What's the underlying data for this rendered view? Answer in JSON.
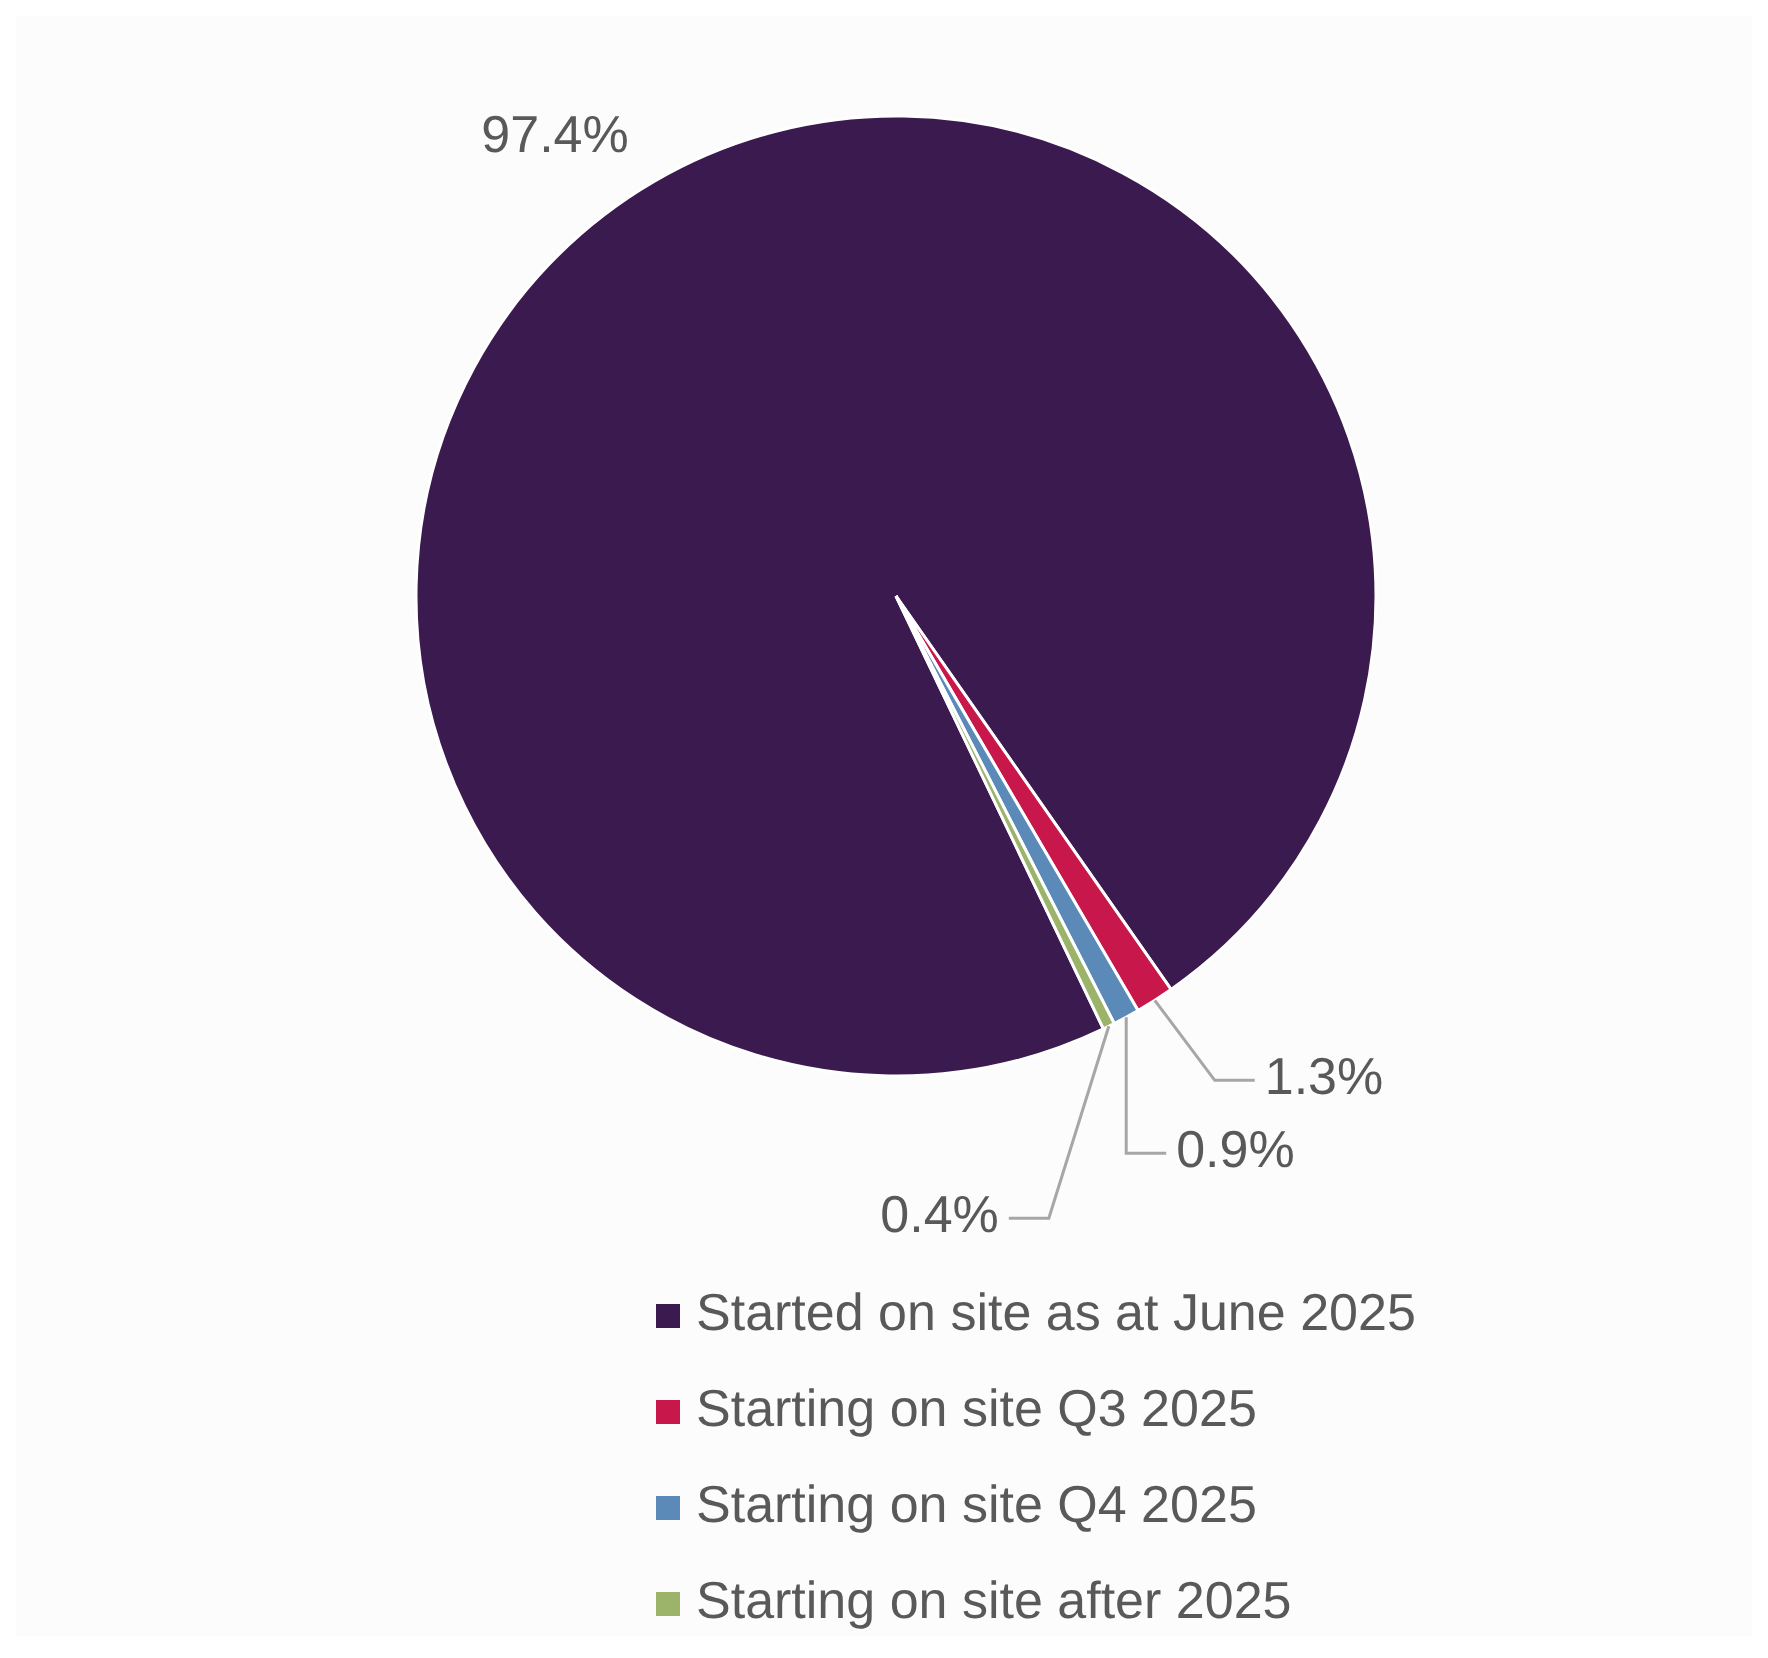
{
  "chart_data": {
    "type": "pie",
    "categories": [
      "Started on site as at June 2025",
      "Starting on site Q3 2025",
      "Starting on site Q4 2025",
      "Starting on site after 2025"
    ],
    "values": [
      97.4,
      1.3,
      0.9,
      0.4
    ],
    "value_labels": [
      "97.4%",
      "1.3%",
      "0.9%",
      "0.4%"
    ],
    "colors": [
      "#3b1a4f",
      "#c8174a",
      "#5b8ab8",
      "#9bb46a"
    ],
    "legend": "bottom"
  }
}
